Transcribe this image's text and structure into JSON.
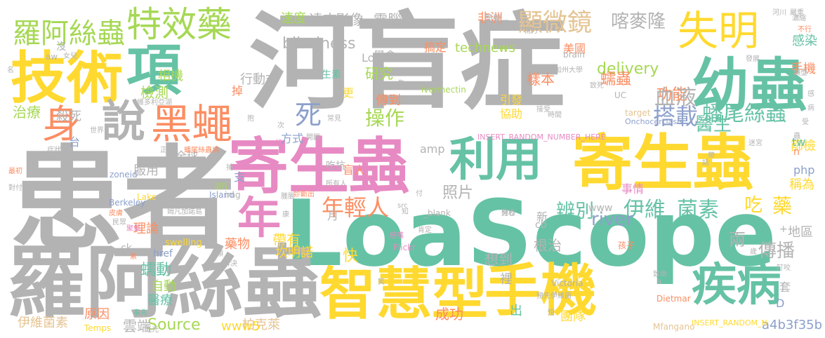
{
  "palette": {
    "gray": "#b3b3b3",
    "green": "#66c2a5",
    "pink": "#e78ac3",
    "yellow": "#ffd92f",
    "orange": "#fc8d62",
    "lime": "#a6d854",
    "blue": "#8da0cb",
    "tan": "#e5c494"
  },
  "words": [
    {
      "text": "河盲症",
      "color": "gray"
    },
    {
      "text": "患者",
      "color": "gray"
    },
    {
      "text": "LoaScope",
      "color": "green"
    },
    {
      "text": "羅阿絲蟲",
      "color": "gray"
    },
    {
      "text": "寄生蟲",
      "color": "pink"
    },
    {
      "text": "寄生蟲",
      "color": "yellow"
    },
    {
      "text": "智慧型",
      "color": "yellow"
    },
    {
      "text": "手機",
      "color": "yellow"
    },
    {
      "text": "技術",
      "color": "yellow"
    },
    {
      "text": "項",
      "color": "green"
    },
    {
      "text": "幼蟲",
      "color": "green"
    },
    {
      "text": "失明",
      "color": "yellow"
    },
    {
      "text": "疾病",
      "color": "green"
    },
    {
      "text": "利用",
      "color": "green"
    },
    {
      "text": "年",
      "color": "pink"
    },
    {
      "text": "黑蠅",
      "color": "orange"
    },
    {
      "text": "說",
      "color": "gray"
    },
    {
      "text": "身",
      "color": "orange"
    },
    {
      "text": "特效藥",
      "color": "lime"
    },
    {
      "text": "羅阿絲蟲",
      "color": "lime"
    },
    {
      "text": "顯微鏡",
      "color": "tan"
    },
    {
      "text": "喀麥隆",
      "color": "gray"
    },
    {
      "text": "搭載",
      "color": "blue"
    },
    {
      "text": "死",
      "color": "blue"
    },
    {
      "text": "年輕人",
      "color": "orange"
    },
    {
      "text": "伊維",
      "color": "green"
    },
    {
      "text": "菌素",
      "color": "green"
    },
    {
      "text": "吃",
      "color": "yellow"
    },
    {
      "text": "藥",
      "color": "yellow"
    },
    {
      "text": "操作",
      "color": "lime"
    },
    {
      "text": "功能",
      "color": "orange"
    },
    {
      "text": "血液",
      "color": "gray"
    },
    {
      "text": "蟠尾絲蟲",
      "color": "green"
    },
    {
      "text": "醫生",
      "color": "green"
    },
    {
      "text": "辨別",
      "color": "green"
    },
    {
      "text": "river",
      "color": "blue"
    },
    {
      "text": "Source",
      "color": "lime"
    },
    {
      "text": "blindness",
      "color": "gray"
    },
    {
      "text": "delivery",
      "color": "lime"
    },
    {
      "text": "technews",
      "color": "lime"
    },
    {
      "text": "影像",
      "color": "gray"
    },
    {
      "text": "電腦",
      "color": "gray"
    },
    {
      "text": "達志",
      "color": "gray"
    },
    {
      "text": "速度",
      "color": "lime"
    },
    {
      "text": "非洲",
      "color": "orange"
    },
    {
      "text": "檢測",
      "color": "lime"
    },
    {
      "text": "治療",
      "color": "lime"
    },
    {
      "text": "殺死",
      "color": "gray"
    },
    {
      "text": "研究",
      "color": "lime"
    },
    {
      "text": "樣本",
      "color": "orange"
    },
    {
      "text": "傳到",
      "color": "orange"
    },
    {
      "text": "蠕蟲",
      "color": "orange"
    },
    {
      "text": "傳播",
      "color": "gray"
    },
    {
      "text": "根治",
      "color": "gray"
    },
    {
      "text": "照片",
      "color": "gray"
    },
    {
      "text": "快",
      "color": "yellow"
    },
    {
      "text": "帶有",
      "color": "yellow"
    },
    {
      "text": "坎明諾",
      "color": "yellow"
    },
    {
      "text": "雲端",
      "color": "gray"
    },
    {
      "text": "柏克萊",
      "color": "tan"
    },
    {
      "text": "www5",
      "color": "yellow"
    },
    {
      "text": "成功",
      "color": "orange"
    },
    {
      "text": "團隊",
      "color": "yellow"
    },
    {
      "text": "a4b3f35b",
      "color": "blue"
    },
    {
      "text": "伊維菌素",
      "color": "tan"
    },
    {
      "text": "原因",
      "color": "orange"
    },
    {
      "text": "醫療",
      "color": "green"
    },
    {
      "text": "自動",
      "color": "lime"
    },
    {
      "text": "蠕動",
      "color": "green"
    },
    {
      "text": "藥物",
      "color": "orange"
    },
    {
      "text": "理論",
      "color": "orange"
    },
    {
      "text": "服用",
      "color": "gray"
    },
    {
      "text": "全球",
      "color": "gray"
    },
    {
      "text": "方式",
      "color": "blue"
    },
    {
      "text": "相機",
      "color": "lime"
    },
    {
      "text": "行動式",
      "color": "gray"
    },
    {
      "text": "美國",
      "color": "orange"
    },
    {
      "text": "手機",
      "color": "orange"
    },
    {
      "text": "感染",
      "color": "green"
    },
    {
      "text": "稱為",
      "color": "yellow"
    },
    {
      "text": "篩檢",
      "color": "yellow"
    },
    {
      "text": "事情",
      "color": "pink"
    },
    {
      "text": "www",
      "color": "gray"
    },
    {
      "text": "php",
      "color": "blue"
    },
    {
      "text": "tw",
      "color": "green"
    },
    {
      "text": "amp",
      "color": "gray"
    },
    {
      "text": "cb",
      "color": "gray"
    },
    {
      "text": "ck",
      "color": "gray"
    },
    {
      "text": "href",
      "color": "blue"
    },
    {
      "text": "簡單",
      "color": "gray"
    },
    {
      "text": "搞定",
      "color": "orange"
    },
    {
      "text": "學會",
      "color": "gray"
    },
    {
      "text": "引發",
      "color": "yellow"
    },
    {
      "text": "協助",
      "color": "yellow"
    },
    {
      "text": "掉",
      "color": "orange"
    },
    {
      "text": "生素",
      "color": "green"
    },
    {
      "text": "更",
      "color": "yellow"
    },
    {
      "text": "地區",
      "color": "gray"
    },
    {
      "text": "兩",
      "color": "gray"
    },
    {
      "text": "想到",
      "color": "gray"
    },
    {
      "text": "盲人",
      "color": "orange"
    },
    {
      "text": "裡",
      "color": "gray"
    },
    {
      "text": "出",
      "color": "green"
    },
    {
      "text": "套",
      "color": "gray"
    },
    {
      "text": "新",
      "color": "gray"
    },
    {
      "text": "月",
      "color": "gray"
    },
    {
      "text": "支",
      "color": "blue"
    },
    {
      "text": "台",
      "color": "blue"
    },
    {
      "text": "ivermectin",
      "color": "lime"
    },
    {
      "text": "brain",
      "color": "gray"
    },
    {
      "text": "zoneid",
      "color": "blue"
    },
    {
      "text": "Loa",
      "color": "gray"
    },
    {
      "text": "D",
      "color": "blue"
    },
    {
      "text": "n",
      "color": "orange"
    },
    {
      "text": "INSERT_RANDOM_NUMBER_HERE",
      "color": "pink"
    },
    {
      "text": "INSERT_RANDOM_N",
      "color": "yellow"
    },
    {
      "text": "Onchocerciasis",
      "color": "blue"
    },
    {
      "text": "Berkeley",
      "color": "blue"
    },
    {
      "text": "swelling",
      "color": "yellow"
    },
    {
      "text": "Victoria",
      "color": "gray"
    },
    {
      "text": "Dietmar",
      "color": "orange"
    },
    {
      "text": "Mfangano",
      "color": "tan"
    },
    {
      "text": "Island",
      "color": "blue"
    },
    {
      "text": "Lake",
      "color": "yellow"
    },
    {
      "text": "Flickr",
      "color": "pink"
    },
    {
      "text": "Temps",
      "color": "yellow"
    },
    {
      "text": "target",
      "color": "tan"
    },
    {
      "text": "UC",
      "color": "gray"
    },
    {
      "text": "src",
      "color": "gray"
    },
    {
      "text": "_blank",
      "color": "gray"
    },
    {
      "text": "img",
      "color": "gray"
    },
    {
      "text": "aw",
      "color": "gray"
    },
    {
      "text": "加州大學",
      "color": "gray"
    },
    {
      "text": "時間",
      "color": "gray"
    },
    {
      "text": "常見",
      "color": "gray"
    },
    {
      "text": "吃抗",
      "color": "gray"
    },
    {
      "text": "開闢",
      "color": "gray"
    },
    {
      "text": "所有人",
      "color": "gray"
    },
    {
      "text": "診斷出",
      "color": "orange"
    },
    {
      "text": "流行",
      "color": "lime"
    },
    {
      "text": "世界",
      "color": "gray"
    },
    {
      "text": "症狀",
      "color": "gray"
    },
    {
      "text": "最初",
      "color": "orange"
    },
    {
      "text": "對付",
      "color": "gray"
    },
    {
      "text": "皮膚",
      "color": "orange"
    },
    {
      "text": "民眾",
      "color": "gray"
    },
    {
      "text": "維多利亞湖",
      "color": "gray"
    },
    {
      "text": "姆凡加諾島",
      "color": "gray"
    },
    {
      "text": "蟠尾絲蟲病",
      "color": "orange"
    },
    {
      "text": "解決",
      "color": "gray"
    },
    {
      "text": "人類",
      "color": "gray"
    },
    {
      "text": "腫脹",
      "color": "gray"
    },
    {
      "text": "開心",
      "color": "gray"
    },
    {
      "text": "孩子",
      "color": "orange"
    },
    {
      "text": "致命",
      "color": "gray"
    },
    {
      "text": "叮咬",
      "color": "gray"
    },
    {
      "text": "伊維菌",
      "color": "gray"
    },
    {
      "text": "預先",
      "color": "gray"
    },
    {
      "text": "短",
      "color": "gray"
    },
    {
      "text": "事先",
      "color": "green"
    },
    {
      "text": "光光",
      "color": "gray"
    },
    {
      "text": "肯定",
      "color": "gray"
    },
    {
      "text": "感嘆",
      "color": "pink"
    },
    {
      "text": "分校",
      "color": "gray"
    },
    {
      "text": "接受",
      "color": "gray"
    },
    {
      "text": "致死",
      "color": "gray"
    },
    {
      "text": "發展",
      "color": "gray"
    },
    {
      "text": "類型",
      "color": "gray"
    },
    {
      "text": "嚴重",
      "color": "gray"
    },
    {
      "text": "迷宮",
      "color": "gray"
    },
    {
      "text": "話",
      "color": "gray"
    },
    {
      "text": "帶",
      "color": "gray"
    },
    {
      "text": "連續",
      "color": "yellow"
    },
    {
      "text": "歲",
      "color": "gray"
    },
    {
      "text": "主因",
      "color": "gray"
    },
    {
      "text": "河川",
      "color": "gray"
    },
    {
      "text": "濃縮",
      "color": "gray"
    },
    {
      "text": "不行",
      "color": "orange"
    },
    {
      "text": "視力",
      "color": "gray"
    },
    {
      "text": "沒",
      "color": "gray"
    },
    {
      "text": "女兒",
      "color": "gray"
    },
    {
      "text": "名",
      "color": "gray"
    },
    {
      "text": "聚集",
      "color": "pink"
    },
    {
      "text": "捕",
      "color": "gray"
    },
    {
      "text": "抱",
      "color": "gray"
    },
    {
      "text": "次",
      "color": "gray"
    },
    {
      "text": "找",
      "color": "pink"
    },
    {
      "text": "先",
      "color": "gray"
    },
    {
      "text": "正",
      "color": "gray"
    },
    {
      "text": "素",
      "color": "orange"
    },
    {
      "text": "付",
      "color": "gray"
    },
    {
      "text": "康",
      "color": "gray"
    },
    {
      "text": "笑",
      "color": "gray"
    },
    {
      "text": "a",
      "color": "gray"
    },
    {
      "text": "知",
      "color": "gray"
    },
    {
      "text": "+",
      "color": "gray"
    },
    {
      "text": "蟲",
      "color": "gray"
    },
    {
      "text": "受",
      "color": "gray"
    },
    {
      "text": "感",
      "color": "gray"
    },
    {
      "text": "病",
      "color": "gray"
    }
  ]
}
